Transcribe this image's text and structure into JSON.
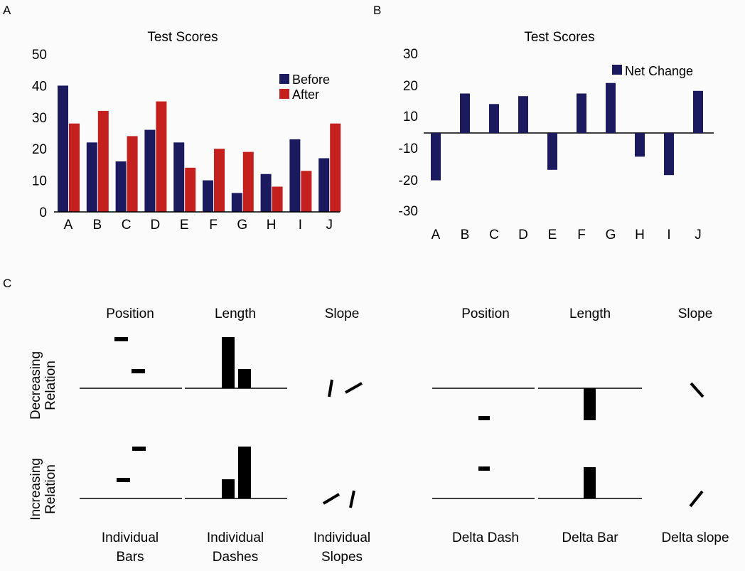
{
  "colors": {
    "before": "#1c1a5e",
    "after": "#c4201e",
    "net": "#1c1a5e",
    "mark": "#000000",
    "axis": "#000000"
  },
  "panel_labels": {
    "a": "A",
    "b": "B",
    "c": "C"
  },
  "chart_data": [
    {
      "panel": "A",
      "type": "bar",
      "title": "Test Scores",
      "categories": [
        "A",
        "B",
        "C",
        "D",
        "E",
        "F",
        "G",
        "H",
        "I",
        "J"
      ],
      "series": [
        {
          "name": "Before",
          "values": [
            40,
            22,
            16,
            26,
            22,
            10,
            6,
            12,
            23,
            17
          ]
        },
        {
          "name": "After",
          "values": [
            28,
            32,
            24,
            35,
            14,
            20,
            19,
            8,
            13,
            28
          ]
        }
      ],
      "yticks": [
        "0",
        "10",
        "20",
        "30",
        "40",
        "50"
      ],
      "ylim": [
        0,
        50
      ],
      "legend": "top-right"
    },
    {
      "panel": "B",
      "type": "bar",
      "title": "Test Scores",
      "categories": [
        "A",
        "B",
        "C",
        "D",
        "E",
        "F",
        "G",
        "H",
        "I",
        "J"
      ],
      "series": [
        {
          "name": "Net Change",
          "values": [
            -18,
            15,
            11,
            14,
            -14,
            15,
            19,
            -9,
            -16,
            16
          ]
        }
      ],
      "yticks": [
        "30",
        "20",
        "10",
        "-10",
        "-20",
        "-30"
      ],
      "legend": "top-right"
    }
  ],
  "panel_c": {
    "groups": [
      "Position",
      "Length",
      "Slope",
      "Position",
      "Length",
      "Slope"
    ],
    "rows": [
      "Decreasing Relation",
      "Increasing Relation"
    ],
    "captions": [
      [
        "Individual",
        "Bars"
      ],
      [
        "Individual",
        "Dashes"
      ],
      [
        "Individual",
        "Slopes"
      ],
      [
        "Delta Dash"
      ],
      [
        "Delta Bar"
      ],
      [
        "Delta slope"
      ]
    ]
  }
}
